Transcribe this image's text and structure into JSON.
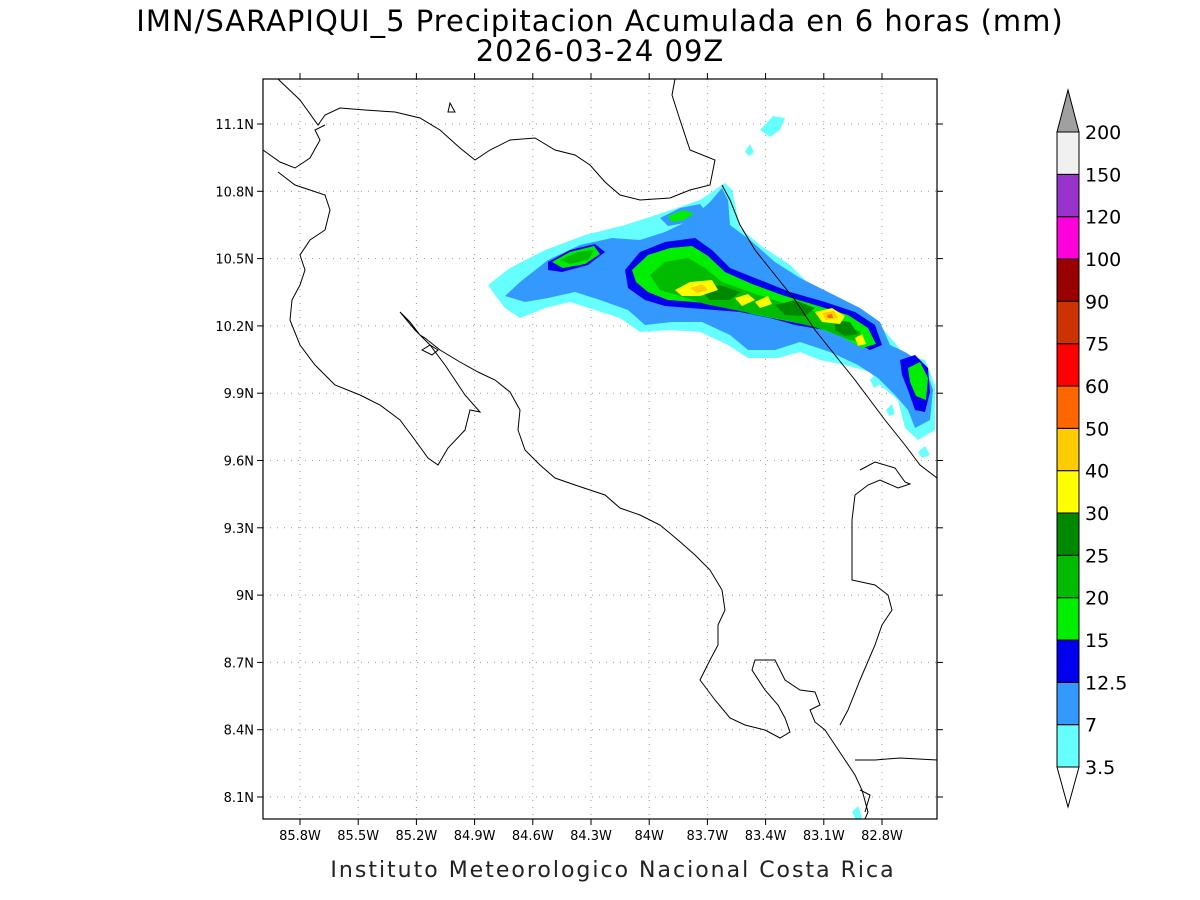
{
  "header": {
    "title_line1": "IMN/SARAPIQUI_5 Precipitacion Acumulada en 6 horas (mm)",
    "title_line2": "2026-03-24 09Z"
  },
  "map": {
    "lat_labels": [
      "11.1N",
      "10.8N",
      "10.5N",
      "10.2N",
      "9.9N",
      "9.6N",
      "9.3N",
      "9N",
      "8.7N",
      "8.4N",
      "8.1N"
    ],
    "lon_labels": [
      "85.8W",
      "85.5W",
      "85.2W",
      "84.9W",
      "84.6W",
      "84.3W",
      "84W",
      "83.7W",
      "83.4W",
      "83.1W",
      "82.8W"
    ]
  },
  "colorbar": {
    "levels": [
      "3.5",
      "7",
      "12.5",
      "15",
      "20",
      "25",
      "30",
      "40",
      "50",
      "60",
      "75",
      "90",
      "100",
      "120",
      "150",
      "200"
    ],
    "colors": [
      "#ffffff",
      "#66ffff",
      "#3399ff",
      "#0000ee",
      "#00ee00",
      "#00bb00",
      "#008800",
      "#ffff00",
      "#ffcc00",
      "#ff6600",
      "#ff0000",
      "#cc3300",
      "#990000",
      "#ff00dd",
      "#9933cc",
      "#f0f0f0",
      "#a0a0a0"
    ]
  },
  "footer": {
    "credit": "Instituto Meteorologico Nacional Costa Rica"
  }
}
